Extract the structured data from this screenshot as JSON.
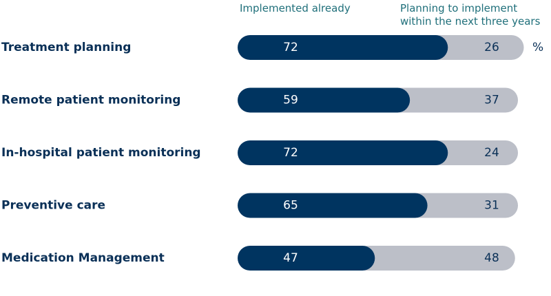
{
  "chart_data": {
    "type": "bar",
    "orientation": "horizontal",
    "stacked": true,
    "categories": [
      "Treatment planning",
      "Remote patient monitoring",
      "In-hospital patient monitoring",
      "Preventive care",
      "Medication Management"
    ],
    "series": [
      {
        "name": "Implemented already",
        "values": [
          72,
          59,
          72,
          65,
          47
        ],
        "color": "#003460"
      },
      {
        "name": "Planning to implement within the next three years",
        "values": [
          26,
          37,
          24,
          31,
          48
        ],
        "color": "#bcbfc8"
      }
    ],
    "legend": {
      "placement": "top",
      "items": [
        {
          "lines": [
            "Implemented already"
          ]
        },
        {
          "lines": [
            "Planning to implement",
            "within the next three years"
          ]
        }
      ]
    },
    "unit": "%",
    "xlim": [
      0,
      100
    ],
    "grid": false
  },
  "colors": {
    "category_label": "#0a3057",
    "legend_text": "#1f6f7a",
    "value_on_dark": "#ffffff",
    "value_on_light": "#0a3057",
    "unit_text": "#0a3057"
  }
}
